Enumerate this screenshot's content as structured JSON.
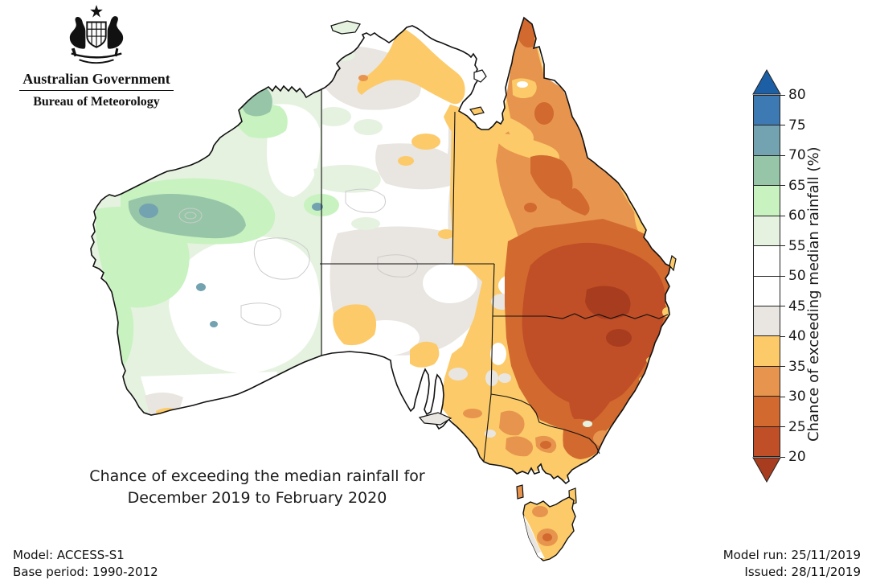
{
  "header": {
    "government_title": "Australian Government",
    "agency_title": "Bureau of Meteorology"
  },
  "map": {
    "title_line1": "Chance of exceeding the median rainfall for",
    "title_line2": "December 2019 to February 2020"
  },
  "legend": {
    "axis_label": "Chance of exceeding median rainfall (%)",
    "boundary_labels": [
      "80",
      "75",
      "70",
      "65",
      "60",
      "55",
      "50",
      "45",
      "40",
      "35",
      "30",
      "25",
      "20"
    ],
    "segment_colors": [
      "#3d7ab3",
      "#73a2b1",
      "#96c6a7",
      "#c8f2c0",
      "#e5f2e0",
      "#ffffff",
      "#ffffff",
      "#e9e5e0",
      "#fcca68",
      "#e7944e",
      "#d2692f",
      "#c04e26"
    ],
    "arrow_top_color": "#1d5fa5",
    "arrow_bottom_color": "#a83c1e"
  },
  "palette": {
    "darkblue": "#1d5fa5",
    "blue": "#3d7ab3",
    "tealblue": "#73a2b1",
    "teal": "#96c6a7",
    "green": "#c8f2c0",
    "palegreen": "#e5f2e0",
    "white": "#ffffff",
    "grey": "#e9e5e0",
    "yellow": "#fcca68",
    "orange": "#e7944e",
    "darkorange": "#d2692f",
    "redbrown": "#c04e26",
    "darkred": "#a83c1e",
    "coast": "#111111",
    "contour": "#cccccc"
  },
  "footer": {
    "model_label": "Model: ACCESS-S1",
    "base_period_label": "Base period: 1990-2012",
    "model_run_label": "Model run: 25/11/2019",
    "issued_label": "Issued: 28/11/2019"
  }
}
